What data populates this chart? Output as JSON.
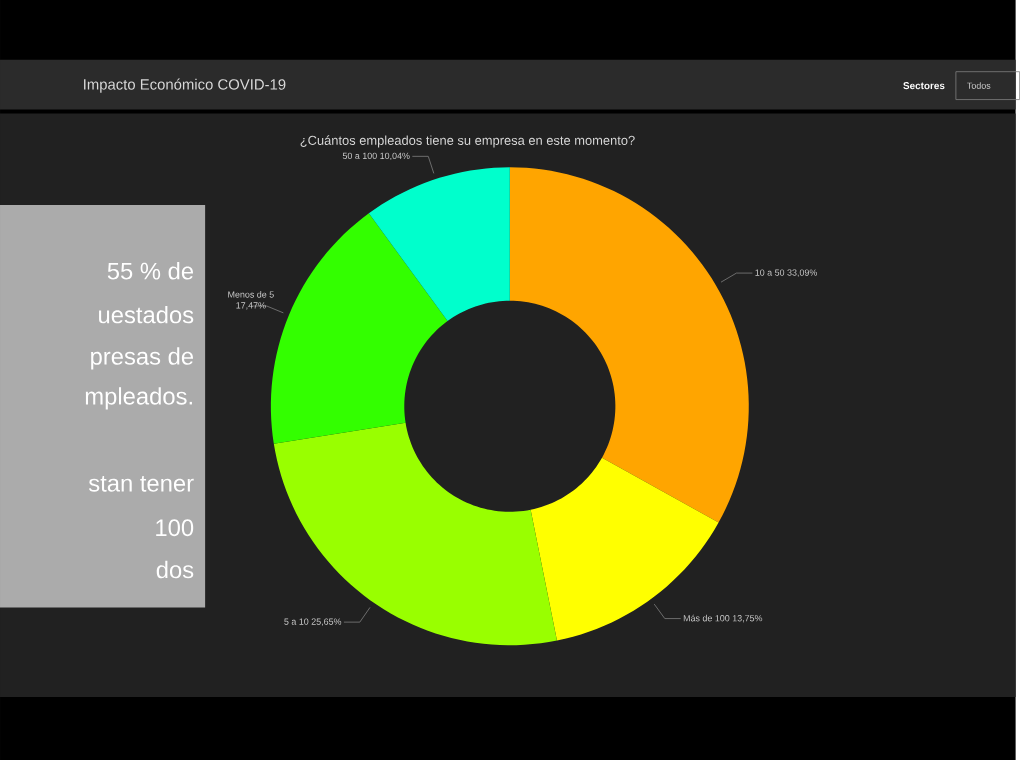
{
  "chart_data": {
    "type": "donut",
    "title": "Impacto Económico COVID-19",
    "subtitle": "¿Cuántos empleados tiene su empresa en este momento?",
    "categories": [
      "10 a 50",
      "Más de 100",
      "5 a 10",
      "Menos de 5",
      "50 a 100"
    ],
    "values": [
      33.09,
      13.75,
      25.65,
      17.47,
      10.04
    ],
    "value_labels": [
      "33,09%",
      "13,75%",
      "25,65%",
      "17,47%",
      "10,04%"
    ],
    "colors": [
      "#ffa500",
      "#ffff00",
      "#99ff00",
      "#33ff00",
      "#00ffcc"
    ],
    "annotations": [
      "Sectores",
      "Todos",
      "55 % de",
      "uestados",
      "presas de",
      "mpleados.",
      "stan tener",
      "100",
      "dos"
    ]
  }
}
